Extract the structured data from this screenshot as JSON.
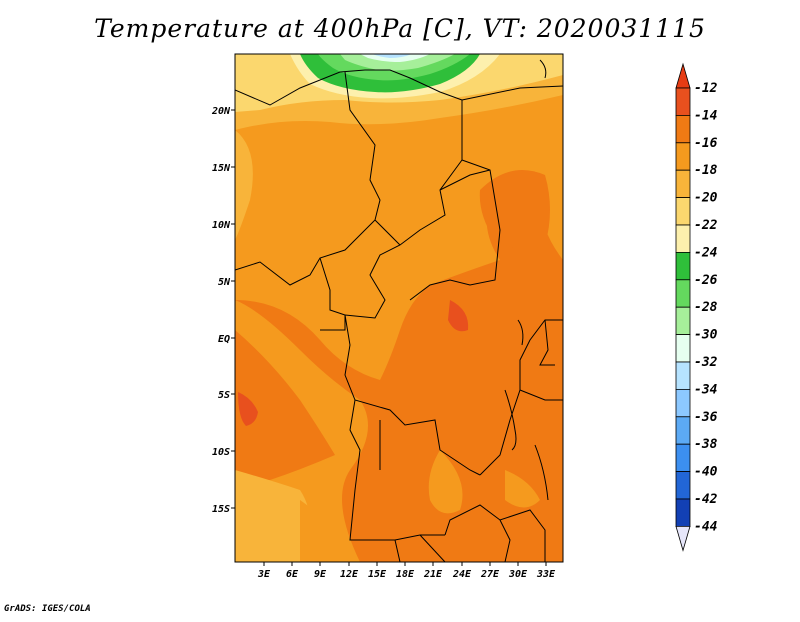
{
  "title": "Temperature at 400hPa [C], VT: 2020031115",
  "credit": "GrADS: IGES/COLA",
  "lat_labels": [
    "20N",
    "15N",
    "10N",
    "5N",
    "EQ",
    "5S",
    "10S",
    "15S"
  ],
  "lon_labels": [
    "3E",
    "6E",
    "9E",
    "12E",
    "15E",
    "18E",
    "21E",
    "24E",
    "27E",
    "30E",
    "33E"
  ],
  "colorbar": {
    "labels": [
      "-12",
      "-14",
      "-16",
      "-18",
      "-20",
      "-22",
      "-24",
      "-26",
      "-28",
      "-30",
      "-32",
      "-34",
      "-36",
      "-38",
      "-40",
      "-42",
      "-44"
    ],
    "colors": [
      "#e8501e",
      "#f07a14",
      "#f59a1e",
      "#f8b43a",
      "#fbd76e",
      "#fdf0ad",
      "#2fbf3a",
      "#64d95e",
      "#a6ef9a",
      "#e6fff0",
      "#b6e3ff",
      "#8cc8ff",
      "#5caaf5",
      "#3c8ff0",
      "#2266d6",
      "#1240b4",
      "#0a146e"
    ],
    "top_arrow_color": "#e63c14",
    "bottom_arrow_color": "#e6e6fa"
  },
  "colors": {
    "field_base": "#f59a1e",
    "warm_core": "#f07a14",
    "hot_spot": "#e8501e",
    "cool_north": "#fbd76e",
    "green_north": "#64d95e"
  }
}
